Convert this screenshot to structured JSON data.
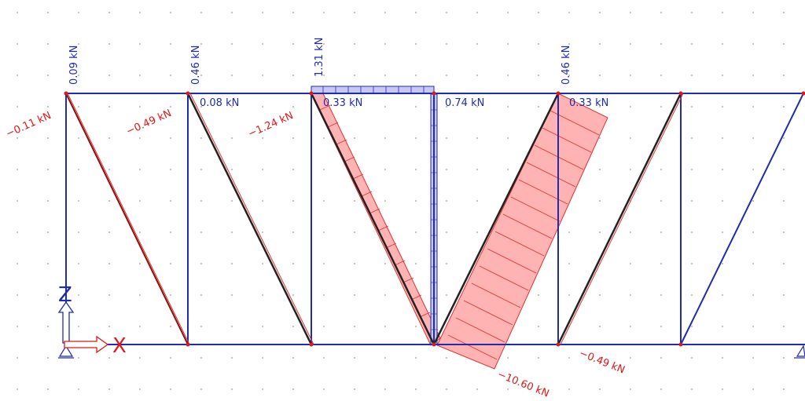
{
  "colors": {
    "member": "#1f2bb0",
    "diagonal_dark": "#222222",
    "tension_label": "#1f2bb0",
    "compression_label": "#e01818",
    "compression_fill": "#ff9a9a",
    "compression_stroke": "#e23030",
    "tension_fill": "#c8c8f4",
    "grid_dot": "#9a9a9a",
    "node": "#e01818",
    "axis_z": "#1f2bb0",
    "axis_x": "#e01818"
  },
  "axes": {
    "z_label": "Z",
    "x_label": "X"
  },
  "vertical_forces": [
    {
      "id": "v1",
      "text": "0.09 kN"
    },
    {
      "id": "v2",
      "text": "0.46 kN"
    },
    {
      "id": "v3",
      "text": "1.31 kN"
    },
    {
      "id": "v5",
      "text": "0.46 kN"
    }
  ],
  "top_chord_forces": [
    {
      "id": "t2",
      "text": "0.08 kN"
    },
    {
      "id": "t3",
      "text": "0.33 kN"
    },
    {
      "id": "t4",
      "text": "0.74 kN"
    },
    {
      "id": "t5",
      "text": "0.33 kN"
    }
  ],
  "diagonal_forces": [
    {
      "id": "d1",
      "text": "−0.11 kN"
    },
    {
      "id": "d2",
      "text": "−0.49 kN"
    },
    {
      "id": "d3",
      "text": "−1.24 kN"
    },
    {
      "id": "d4",
      "text": "−10.60 kN"
    },
    {
      "id": "d5",
      "text": "−0.49 kN"
    }
  ]
}
